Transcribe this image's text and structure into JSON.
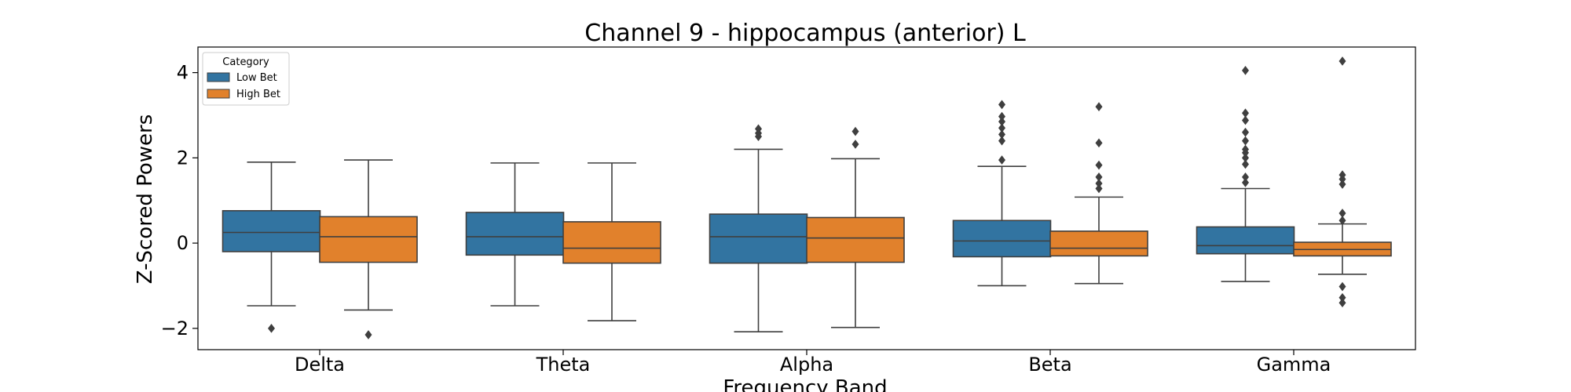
{
  "chart_data": {
    "type": "box",
    "title": "Channel 9 - hippocampus (anterior) L",
    "xlabel": "Frequency Band",
    "ylabel": "Z-Scored Powers",
    "ylim": [
      -2.5,
      4.6
    ],
    "yticks": [
      -2,
      0,
      2,
      4
    ],
    "ytick_labels": [
      "−2",
      "0",
      "2",
      "4"
    ],
    "categories": [
      "Delta",
      "Theta",
      "Alpha",
      "Beta",
      "Gamma"
    ],
    "legend": {
      "title": "Category",
      "position": "top-left"
    },
    "series": [
      {
        "name": "Low Bet",
        "color": "#3274a1",
        "boxes": [
          {
            "whislo": -1.47,
            "q1": -0.2,
            "med": 0.25,
            "q3": 0.76,
            "whishi": 1.9,
            "fliers": [
              -2.0
            ]
          },
          {
            "whislo": -1.47,
            "q1": -0.28,
            "med": 0.15,
            "q3": 0.72,
            "whishi": 1.88,
            "fliers": []
          },
          {
            "whislo": -2.08,
            "q1": -0.47,
            "med": 0.15,
            "q3": 0.68,
            "whishi": 2.2,
            "fliers": [
              2.5,
              2.58,
              2.68
            ]
          },
          {
            "whislo": -1.0,
            "q1": -0.32,
            "med": 0.05,
            "q3": 0.53,
            "whishi": 1.8,
            "fliers": [
              1.95,
              2.4,
              2.55,
              2.7,
              2.85,
              2.97,
              3.25
            ]
          },
          {
            "whislo": -0.9,
            "q1": -0.25,
            "med": -0.06,
            "q3": 0.38,
            "whishi": 1.28,
            "fliers": [
              1.42,
              1.55,
              1.85,
              2.0,
              2.12,
              2.2,
              2.4,
              2.6,
              2.88,
              3.05,
              4.05
            ]
          }
        ]
      },
      {
        "name": "High Bet",
        "color": "#e1812c",
        "boxes": [
          {
            "whislo": -1.57,
            "q1": -0.45,
            "med": 0.15,
            "q3": 0.62,
            "whishi": 1.95,
            "fliers": [
              -2.15
            ]
          },
          {
            "whislo": -1.82,
            "q1": -0.47,
            "med": -0.12,
            "q3": 0.5,
            "whishi": 1.88,
            "fliers": []
          },
          {
            "whislo": -1.98,
            "q1": -0.45,
            "med": 0.12,
            "q3": 0.6,
            "whishi": 1.98,
            "fliers": [
              2.32,
              2.62
            ]
          },
          {
            "whislo": -0.95,
            "q1": -0.3,
            "med": -0.12,
            "q3": 0.28,
            "whishi": 1.08,
            "fliers": [
              1.28,
              1.4,
              1.55,
              1.83,
              2.35,
              3.2
            ]
          },
          {
            "whislo": -0.73,
            "q1": -0.3,
            "med": -0.15,
            "q3": 0.02,
            "whishi": 0.45,
            "fliers": [
              -1.4,
              -1.28,
              -1.02,
              0.53,
              0.7,
              1.38,
              1.5,
              1.6,
              4.27
            ]
          }
        ]
      }
    ]
  }
}
